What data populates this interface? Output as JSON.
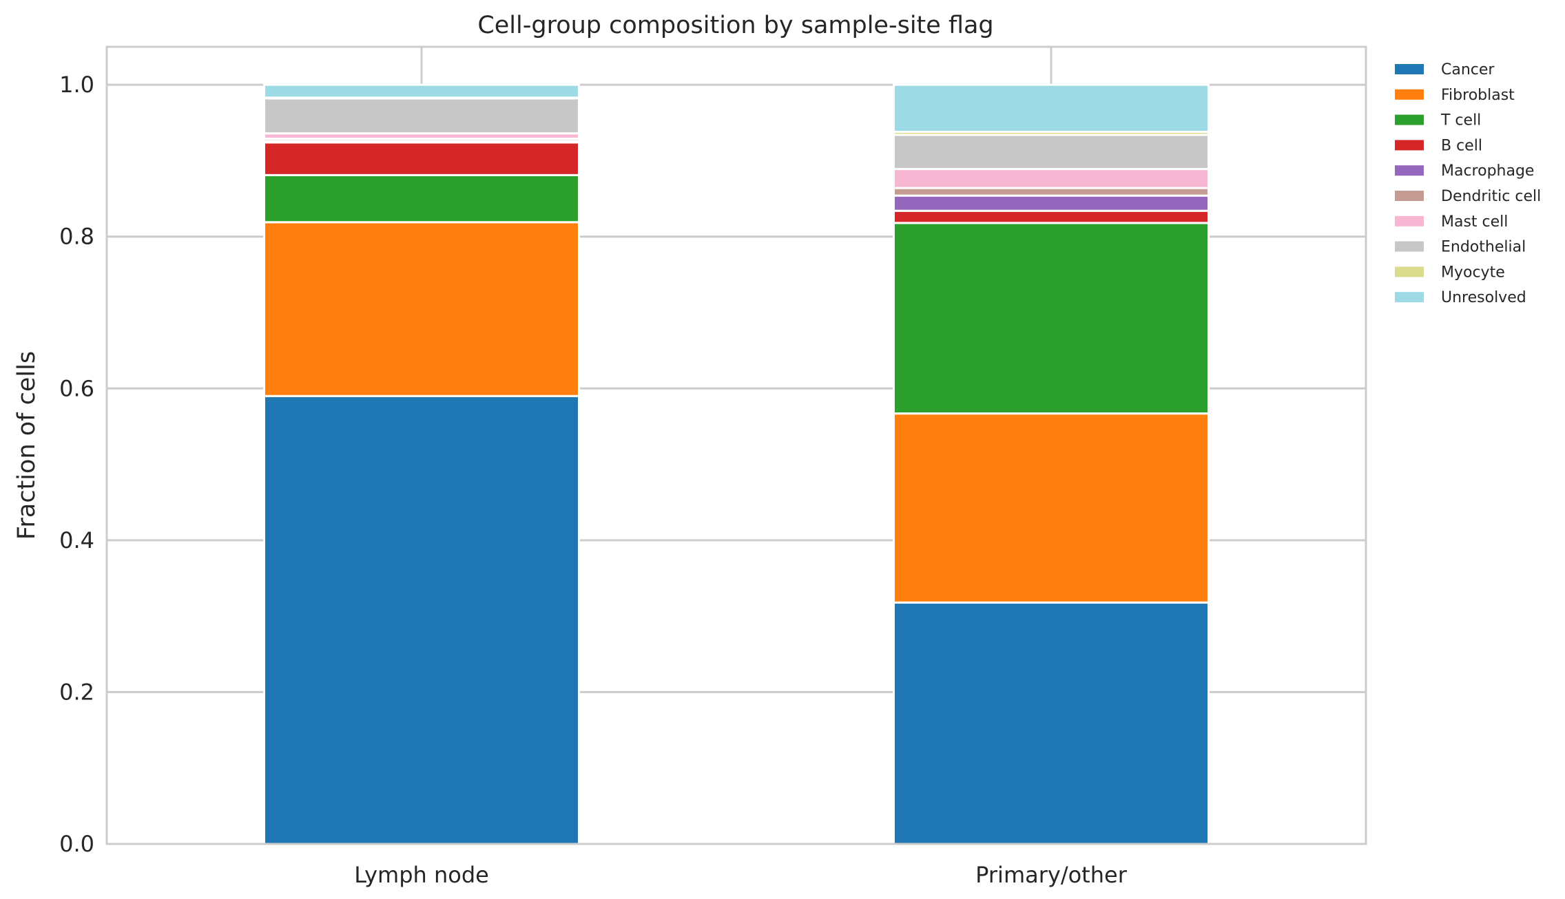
{
  "chart_data": {
    "type": "bar",
    "stacked": true,
    "title": "Cell-group composition by sample-site flag",
    "xlabel": "",
    "ylabel": "Fraction of cells",
    "ylim": [
      0,
      1.05
    ],
    "yticks": [
      "0.0",
      "0.2",
      "0.4",
      "0.6",
      "0.8",
      "1.0"
    ],
    "grid": true,
    "legend_position": "right-outside",
    "categories": [
      "Lymph node",
      "Primary/other"
    ],
    "series": [
      {
        "name": "Cancer",
        "color": "#1f77b4",
        "values": [
          0.59,
          0.318
        ]
      },
      {
        "name": "Fibroblast",
        "color": "#ff7f0e",
        "values": [
          0.229,
          0.249
        ]
      },
      {
        "name": "T cell",
        "color": "#2ca02c",
        "values": [
          0.062,
          0.251
        ]
      },
      {
        "name": "B cell",
        "color": "#d62728",
        "values": [
          0.043,
          0.016
        ]
      },
      {
        "name": "Macrophage",
        "color": "#9467bd",
        "values": [
          0.002,
          0.02
        ]
      },
      {
        "name": "Dendritic cell",
        "color": "#c49c94",
        "values": [
          0.003,
          0.01
        ]
      },
      {
        "name": "Mast cell",
        "color": "#f7b6d2",
        "values": [
          0.007,
          0.025
        ]
      },
      {
        "name": "Endothelial",
        "color": "#c7c7c7",
        "values": [
          0.046,
          0.045
        ]
      },
      {
        "name": "Myocyte",
        "color": "#dbdb8d",
        "values": [
          0.001,
          0.004
        ]
      },
      {
        "name": "Unresolved",
        "color": "#9edae5",
        "values": [
          0.017,
          0.062
        ]
      }
    ]
  }
}
